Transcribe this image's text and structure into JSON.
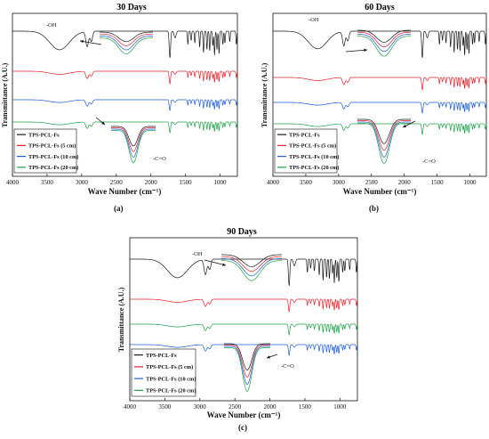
{
  "chart_data": [
    {
      "type": "line",
      "panel_label": "(a)",
      "title": "30 Days",
      "xlabel": "Wave Number (cm⁻¹)",
      "ylabel": "Transmittance (A.U.)",
      "xlim": [
        4000,
        750
      ],
      "x_ticks": [
        4000,
        3500,
        3000,
        2500,
        2000,
        1500,
        1000
      ],
      "series": [
        {
          "name": "TPS-PCL-Fs",
          "color": "#1a1a1a"
        },
        {
          "name": "TPS-PCL-Fs (5 cm)",
          "color": "#e8232b"
        },
        {
          "name": "TPS-PCL-Fs (10 cm)",
          "color": "#1f5fd6"
        },
        {
          "name": "TPS-PCL-Fs (20 cm)",
          "color": "#1fa34a"
        }
      ],
      "order": [
        0,
        1,
        2,
        3
      ],
      "annotations": [
        "-OH",
        "-C=O"
      ]
    },
    {
      "type": "line",
      "panel_label": "(b)",
      "title": "60 Days",
      "xlabel": "Wave Number (cm⁻¹)",
      "ylabel": "Transmittance (A.U.)",
      "xlim": [
        4000,
        750
      ],
      "x_ticks": [
        4000,
        3500,
        3000,
        2500,
        2000,
        1500,
        1000
      ],
      "series": [
        {
          "name": "TPS-PCL-Fs",
          "color": "#1a1a1a"
        },
        {
          "name": "TPS-PCL-Fs (5 cm)",
          "color": "#e8232b"
        },
        {
          "name": "TPS-PCL-Fs (10 cm)",
          "color": "#1f5fd6"
        },
        {
          "name": "TPS-PCL-Fs (20 cm)",
          "color": "#1fa34a"
        }
      ],
      "order": [
        0,
        1,
        2,
        3
      ],
      "annotations": [
        "-OH",
        "-C=O"
      ]
    },
    {
      "type": "line",
      "panel_label": "(c)",
      "title": "90 Days",
      "xlabel": "Wave Number (cm⁻¹)",
      "ylabel": "Transmittance (A.U.)",
      "xlim": [
        4000,
        750
      ],
      "x_ticks": [
        4000,
        3500,
        3000,
        2500,
        2000,
        1500,
        1000
      ],
      "series": [
        {
          "name": "TPS-PCL-Fs",
          "color": "#1a1a1a"
        },
        {
          "name": "TPS-PCL-Fs (5 cm)",
          "color": "#e8232b"
        },
        {
          "name": "TPS-PCL-Fs (10 cm)",
          "color": "#1f5fd6"
        },
        {
          "name": "TPS-PCL-Fs (20 cm)",
          "color": "#1fa34a"
        }
      ],
      "order": [
        0,
        1,
        3,
        2
      ],
      "annotations": [
        "-OH",
        "-C=O"
      ]
    }
  ]
}
